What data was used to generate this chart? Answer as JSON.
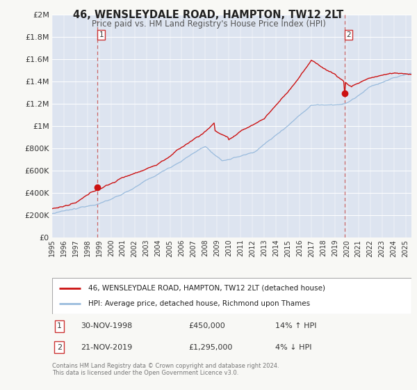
{
  "title": "46, WENSLEYDALE ROAD, HAMPTON, TW12 2LT",
  "subtitle": "Price paid vs. HM Land Registry's House Price Index (HPI)",
  "fig_facecolor": "#f8f8f5",
  "plot_bg_color": "#dde4f0",
  "red_line_color": "#cc1111",
  "blue_line_color": "#99bbdd",
  "dashed_vline_color": "#cc6666",
  "legend_line1": "46, WENSLEYDALE ROAD, HAMPTON, TW12 2LT (detached house)",
  "legend_line2": "HPI: Average price, detached house, Richmond upon Thames",
  "ylim": [
    0,
    2000000
  ],
  "yticks": [
    0,
    200000,
    400000,
    600000,
    800000,
    1000000,
    1200000,
    1400000,
    1600000,
    1800000,
    2000000
  ],
  "ytick_labels": [
    "£0",
    "£200K",
    "£400K",
    "£600K",
    "£800K",
    "£1M",
    "£1.2M",
    "£1.4M",
    "£1.6M",
    "£1.8M",
    "£2M"
  ],
  "xstart_year": 1995,
  "xend_year": 2025,
  "marker1_year": 1998.917,
  "marker1_value": 450000,
  "marker2_year": 2019.917,
  "marker2_value": 1295000,
  "ann1_date": "30-NOV-1998",
  "ann1_price": "£450,000",
  "ann1_hpi": "14% ↑ HPI",
  "ann2_date": "21-NOV-2019",
  "ann2_price": "£1,295,000",
  "ann2_hpi": "4% ↓ HPI",
  "footer_line1": "Contains HM Land Registry data © Crown copyright and database right 2024.",
  "footer_line2": "This data is licensed under the Open Government Licence v3.0."
}
